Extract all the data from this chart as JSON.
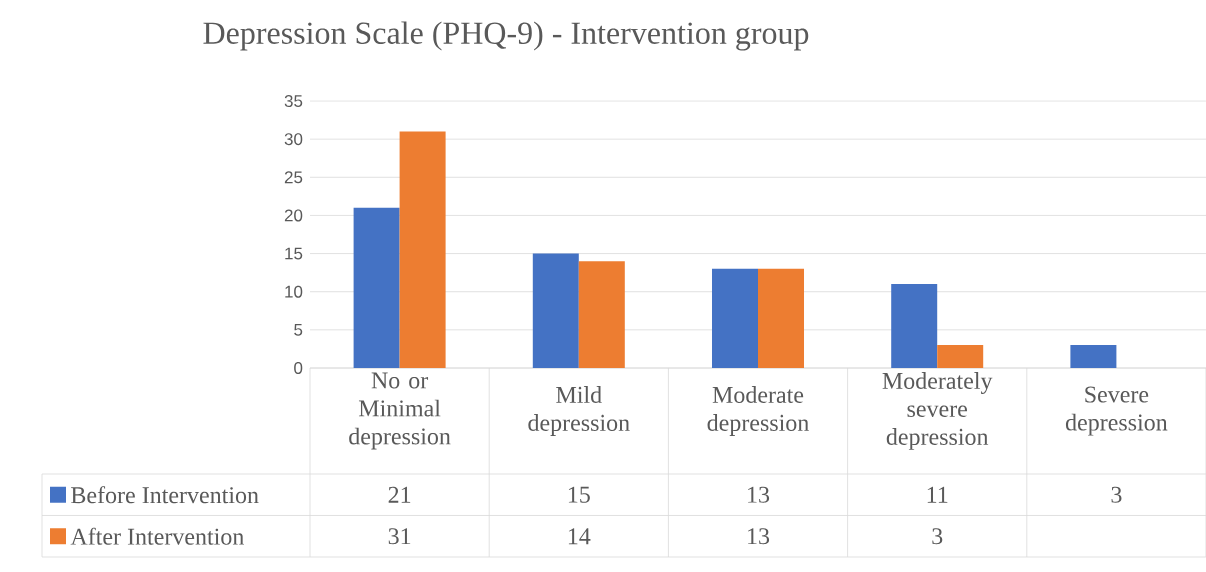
{
  "chart_data": {
    "type": "bar",
    "title": "Depression Scale (PHQ-9) - Intervention group",
    "categories": [
      "No or Minimal depression",
      "Mild depression",
      "Moderate depression",
      "Moderately severe depression",
      "Severe depression"
    ],
    "series": [
      {
        "name": "Before Intervention",
        "color": "#4472c4",
        "values": [
          21,
          15,
          13,
          11,
          3
        ]
      },
      {
        "name": "After Intervention",
        "color": "#ed7d31",
        "values": [
          31,
          14,
          13,
          3,
          null
        ]
      }
    ],
    "ylim": [
      0,
      35
    ],
    "yticks": [
      0,
      5,
      10,
      15,
      20,
      25,
      30,
      35
    ],
    "grid": "y",
    "legend": "bottom",
    "data_labels": true
  }
}
